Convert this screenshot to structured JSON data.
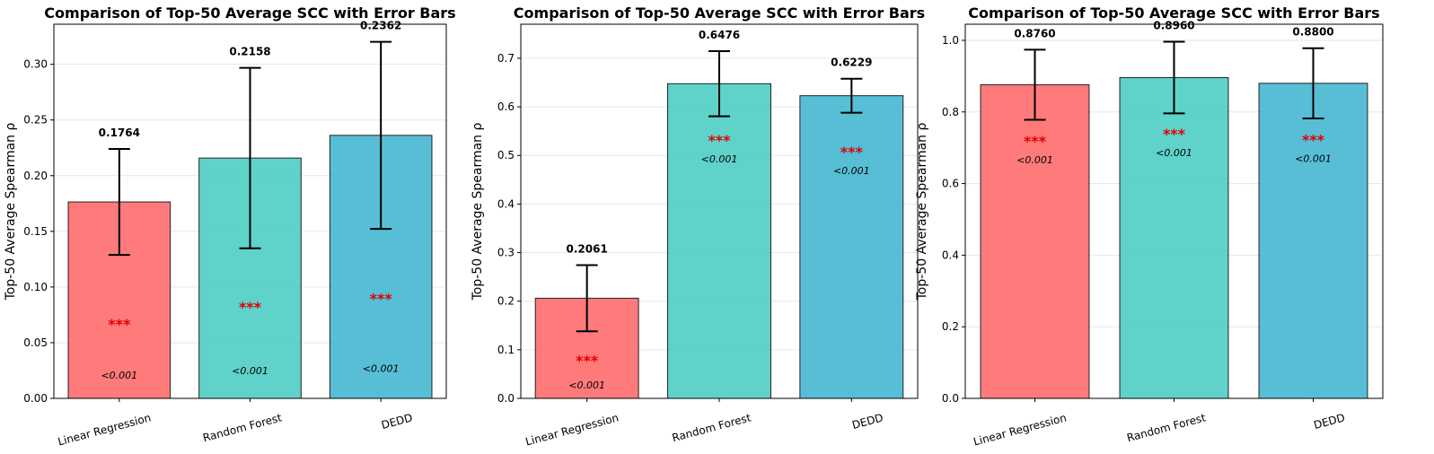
{
  "chart_data": [
    {
      "type": "bar",
      "title": "Comparison of Top-50 Average SCC with Error Bars",
      "y_label": "Top-50 Average Spearman ρ",
      "categories": [
        "Linear Regression",
        "Random Forest",
        "DEDD"
      ],
      "values": [
        0.1764,
        0.2158,
        0.2362
      ],
      "value_labels": [
        "0.1764",
        "0.2158",
        "0.2362"
      ],
      "errors": [
        0.0476,
        0.081,
        0.084
      ],
      "significance": [
        "***",
        "***",
        "***"
      ],
      "p_values": [
        "<0.001",
        "<0.001",
        "<0.001"
      ],
      "colors": [
        "#ff6b6b",
        "#4ecdc4",
        "#45b7d1"
      ],
      "ylim": [
        0,
        0.336
      ],
      "yticks": [
        {
          "value": 0,
          "label": "0.00"
        },
        0.05,
        {
          "value": 0.1,
          "label": "0.10"
        },
        0.15,
        {
          "value": 0.2,
          "label": "0.20"
        },
        0.25,
        {
          "value": 0.3,
          "label": "0.30"
        }
      ],
      "grid": true
    },
    {
      "type": "bar",
      "title": "Comparison of Top-50 Average SCC with Error Bars",
      "y_label": "Top-50 Average Spearman ρ",
      "categories": [
        "Linear Regression",
        "Random Forest",
        "DEDD"
      ],
      "values": [
        0.2061,
        0.6476,
        0.6229
      ],
      "value_labels": [
        "0.2061",
        "0.6476",
        "0.6229"
      ],
      "errors": [
        0.068,
        0.067,
        0.035
      ],
      "significance": [
        "***",
        "***",
        "***"
      ],
      "p_values": [
        "<0.001",
        "<0.001",
        "<0.001"
      ],
      "colors": [
        "#ff6b6b",
        "#4ecdc4",
        "#45b7d1"
      ],
      "ylim": [
        0,
        0.77
      ],
      "yticks": [
        {
          "value": 0,
          "label": "0.0"
        },
        0.1,
        0.2,
        0.3,
        0.4,
        0.5,
        0.6,
        0.7
      ],
      "grid": true
    },
    {
      "type": "bar",
      "title": "Comparison of Top-50 Average SCC with Error Bars",
      "y_label": "Top-50 Average Spearman ρ",
      "categories": [
        "Linear Regression",
        "Random Forest",
        "DEDD"
      ],
      "values": [
        0.876,
        0.896,
        0.88
      ],
      "value_labels": [
        "0.8760",
        "0.8960",
        "0.8800"
      ],
      "errors": [
        0.098,
        0.1,
        0.098
      ],
      "significance": [
        "***",
        "***",
        "***"
      ],
      "p_values": [
        "<0.001",
        "<0.001",
        "<0.001"
      ],
      "colors": [
        "#ff6b6b",
        "#4ecdc4",
        "#45b7d1"
      ],
      "ylim": [
        0,
        1.045
      ],
      "yticks": [
        {
          "value": 0,
          "label": "0.0"
        },
        0.2,
        0.4,
        0.6,
        0.8,
        {
          "value": 1,
          "label": "1.0"
        }
      ],
      "grid": true
    }
  ]
}
